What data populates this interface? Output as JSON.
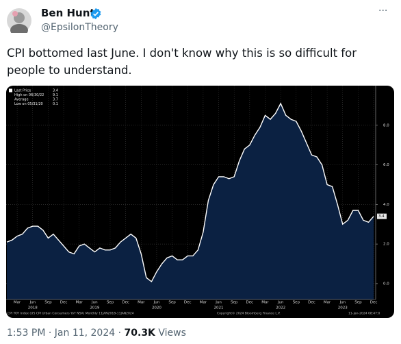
{
  "tweet": {
    "author_name": "Ben Hunt",
    "handle": "@EpsilonTheory",
    "more": "···",
    "text": "CPI bottomed last June. I don't know why this is so difficult for people to understand.",
    "time": "1:53 PM",
    "separator": "·",
    "date": "Jan 11, 2024",
    "views": "70.3K",
    "views_label": "Views"
  },
  "chart_data": {
    "type": "area",
    "categories": [
      "2018-01",
      "2018-02",
      "2018-03",
      "2018-04",
      "2018-05",
      "2018-06",
      "2018-07",
      "2018-08",
      "2018-09",
      "2018-10",
      "2018-11",
      "2018-12",
      "2019-01",
      "2019-02",
      "2019-03",
      "2019-04",
      "2019-05",
      "2019-06",
      "2019-07",
      "2019-08",
      "2019-09",
      "2019-10",
      "2019-11",
      "2019-12",
      "2020-01",
      "2020-02",
      "2020-03",
      "2020-04",
      "2020-05",
      "2020-06",
      "2020-07",
      "2020-08",
      "2020-09",
      "2020-10",
      "2020-11",
      "2020-12",
      "2021-01",
      "2021-02",
      "2021-03",
      "2021-04",
      "2021-05",
      "2021-06",
      "2021-07",
      "2021-08",
      "2021-09",
      "2021-10",
      "2021-11",
      "2021-12",
      "2022-01",
      "2022-02",
      "2022-03",
      "2022-04",
      "2022-05",
      "2022-06",
      "2022-07",
      "2022-08",
      "2022-09",
      "2022-10",
      "2022-11",
      "2022-12",
      "2023-01",
      "2023-02",
      "2023-03",
      "2023-04",
      "2023-05",
      "2023-06",
      "2023-07",
      "2023-08",
      "2023-09",
      "2023-10",
      "2023-11",
      "2023-12"
    ],
    "series": [
      {
        "name": "CPI YOY Index",
        "color": "#ffffff",
        "fill": "#0b2142",
        "values": [
          2.1,
          2.2,
          2.4,
          2.5,
          2.8,
          2.9,
          2.9,
          2.7,
          2.3,
          2.5,
          2.2,
          1.9,
          1.6,
          1.5,
          1.9,
          2.0,
          1.8,
          1.6,
          1.8,
          1.7,
          1.7,
          1.8,
          2.1,
          2.3,
          2.5,
          2.3,
          1.5,
          0.3,
          0.1,
          0.6,
          1.0,
          1.3,
          1.4,
          1.2,
          1.2,
          1.4,
          1.4,
          1.7,
          2.6,
          4.2,
          5.0,
          5.4,
          5.4,
          5.3,
          5.4,
          6.2,
          6.8,
          7.0,
          7.5,
          7.9,
          8.5,
          8.3,
          8.6,
          9.1,
          8.5,
          8.3,
          8.2,
          7.7,
          7.1,
          6.5,
          6.4,
          6.0,
          5.0,
          4.9,
          4.0,
          3.0,
          3.2,
          3.7,
          3.7,
          3.2,
          3.1,
          3.4
        ]
      }
    ],
    "ylim": [
      -0.8,
      10
    ],
    "yticks": [
      {
        "value": 0,
        "label": "0.0"
      },
      {
        "value": 2,
        "label": "2.0"
      },
      {
        "value": 4,
        "label": "4.0"
      },
      {
        "value": 6,
        "label": "6.0"
      },
      {
        "value": 8,
        "label": "8.0"
      }
    ],
    "xticks": [
      {
        "value": "2018-03",
        "label": "Mar"
      },
      {
        "value": "2018-06",
        "label": "Jun"
      },
      {
        "value": "2018-09",
        "label": "Sep"
      },
      {
        "value": "2018-12",
        "label": "Dec"
      },
      {
        "value": "2019-03",
        "label": "Mar"
      },
      {
        "value": "2019-06",
        "label": "Jun"
      },
      {
        "value": "2019-09",
        "label": "Sep"
      },
      {
        "value": "2019-12",
        "label": "Dec"
      },
      {
        "value": "2020-03",
        "label": "Mar"
      },
      {
        "value": "2020-06",
        "label": "Jun"
      },
      {
        "value": "2020-09",
        "label": "Sep"
      },
      {
        "value": "2020-12",
        "label": "Dec"
      },
      {
        "value": "2021-03",
        "label": "Mar"
      },
      {
        "value": "2021-06",
        "label": "Jun"
      },
      {
        "value": "2021-09",
        "label": "Sep"
      },
      {
        "value": "2021-12",
        "label": "Dec"
      },
      {
        "value": "2022-03",
        "label": "Mar"
      },
      {
        "value": "2022-06",
        "label": "Jun"
      },
      {
        "value": "2022-09",
        "label": "Sep"
      },
      {
        "value": "2022-12",
        "label": "Dec"
      },
      {
        "value": "2023-03",
        "label": "Mar"
      },
      {
        "value": "2023-06",
        "label": "Jun"
      },
      {
        "value": "2023-09",
        "label": "Sep"
      },
      {
        "value": "2023-12",
        "label": "Dec"
      }
    ],
    "year_labels": [
      {
        "value": "2018-06",
        "label": "2018"
      },
      {
        "value": "2019-06",
        "label": "2019"
      },
      {
        "value": "2020-06",
        "label": "2020"
      },
      {
        "value": "2021-06",
        "label": "2021"
      },
      {
        "value": "2022-06",
        "label": "2022"
      },
      {
        "value": "2023-06",
        "label": "2023"
      }
    ],
    "legend": [
      {
        "label": "Last Price",
        "value": 3.4
      },
      {
        "label": "High on 06/30/22",
        "value": 9.1
      },
      {
        "label": "Average",
        "value": 3.7
      },
      {
        "label": "Low on 05/31/20",
        "value": 0.1
      }
    ],
    "grid": true,
    "source": "CPI YOY Index (US CPI Urban Consumers YoY NSA) Monthly 11JAN2018-11JAN2024",
    "copyright": "Copyright© 2024 Bloomberg Finance L.P.",
    "timestamp": "11-Jan-2024 08:47:0"
  }
}
